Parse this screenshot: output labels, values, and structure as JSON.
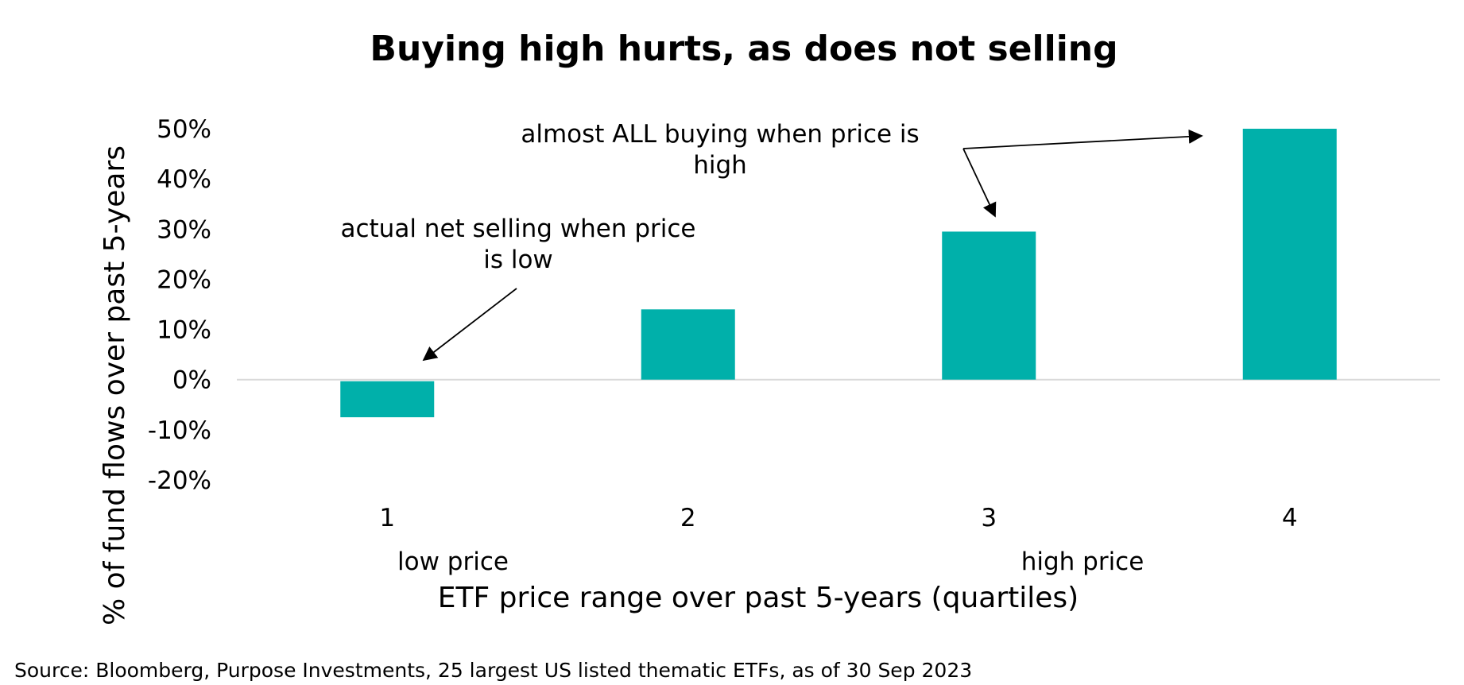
{
  "chart_data": {
    "type": "bar",
    "title": "Buying high hurts, as does not selling",
    "ylabel": "% of fund flows over past 5-years",
    "xlabel": "ETF price range over past 5-years (quartiles)",
    "categories": [
      "1",
      "2",
      "3",
      "4"
    ],
    "values": [
      -7.5,
      14,
      29.5,
      50
    ],
    "ylim": [
      -20,
      50
    ],
    "yticks": [
      "50%",
      "40%",
      "30%",
      "20%",
      "10%",
      "0%",
      "-10%",
      "-20%"
    ],
    "ytick_values": [
      50,
      40,
      30,
      20,
      10,
      0,
      -10,
      -20
    ],
    "bar_color": "#00B0AA",
    "zero_line_color": "#D9D9D9",
    "grid": false,
    "legend": "none",
    "range_labels": {
      "low": "low price",
      "high": "high price"
    },
    "annotations": {
      "selling": {
        "line1": "actual net selling when price",
        "line2": "is low"
      },
      "buying": {
        "line1": "almost ALL buying when price is",
        "line2": "high"
      }
    }
  },
  "source": "Source: Bloomberg, Purpose Investments, 25 largest US listed thematic ETFs, as of 30 Sep 2023"
}
